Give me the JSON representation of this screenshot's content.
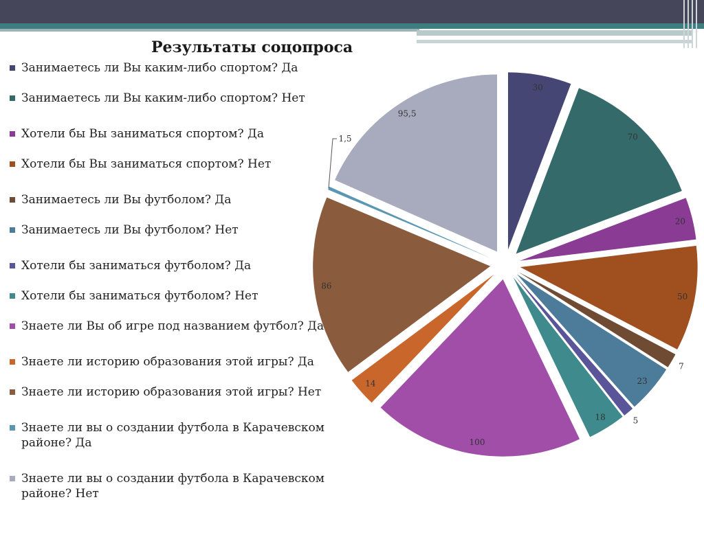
{
  "slide": {
    "colors": {
      "top_band": "#454659",
      "accent_teal": "#3d7f80",
      "accent_gray": "#b8c9ca"
    }
  },
  "chart_data": {
    "type": "pie",
    "title": "Результаты соцопроса",
    "legend_position": "left",
    "slices": [
      {
        "label": "Занимаетесь ли Вы  каким-либо спортом? Да",
        "value": 30,
        "value_label": "30",
        "color": "#464675"
      },
      {
        "label": "Занимаетесь ли Вы  каким-либо спортом? Нет",
        "value": 70,
        "value_label": "70",
        "color": "#356a6b"
      },
      {
        "label": "Хотели бы Вы заниматься спортом? Да",
        "value": 20,
        "value_label": "20",
        "color": "#8a3b94"
      },
      {
        "label": "Хотели бы Вы заниматься спортом? Нет",
        "value": 50,
        "value_label": "50",
        "color": "#a04f1f"
      },
      {
        "label": "Занимаетесь ли Вы футболом? Да",
        "value": 7,
        "value_label": "7",
        "color": "#6e4b32"
      },
      {
        "label": "Занимаетесь ли Вы футболом? Нет",
        "value": 23,
        "value_label": "23",
        "color": "#4d7b9a"
      },
      {
        "label": "Хотели бы заниматься футболом? Да",
        "value": 5,
        "value_label": "5",
        "color": "#5a5598"
      },
      {
        "label": "Хотели бы заниматься футболом? Нет",
        "value": 18,
        "value_label": "18",
        "color": "#3f8a8c"
      },
      {
        "label": "Знаете ли Вы об игре под названием футбол? Да",
        "value": 100,
        "value_label": "100",
        "color": "#a04ea8"
      },
      {
        "label": "Знаете ли историю образования этой игры? Да",
        "value": 14,
        "value_label": "14",
        "color": "#c9662b"
      },
      {
        "label": "Знаете ли историю образования этой игры? Нет",
        "value": 86,
        "value_label": "86",
        "color": "#8a5b3c"
      },
      {
        "label": "Знаете ли вы о создании футбола в Карачевском районе? Да",
        "value": 1.5,
        "value_label": "1,5",
        "color": "#5b96b3"
      },
      {
        "label": "Знаете ли вы о создании футбола в Карачевском районе? Нет",
        "value": 95.5,
        "value_label": "95,5",
        "color": "#a8aabd"
      }
    ]
  }
}
